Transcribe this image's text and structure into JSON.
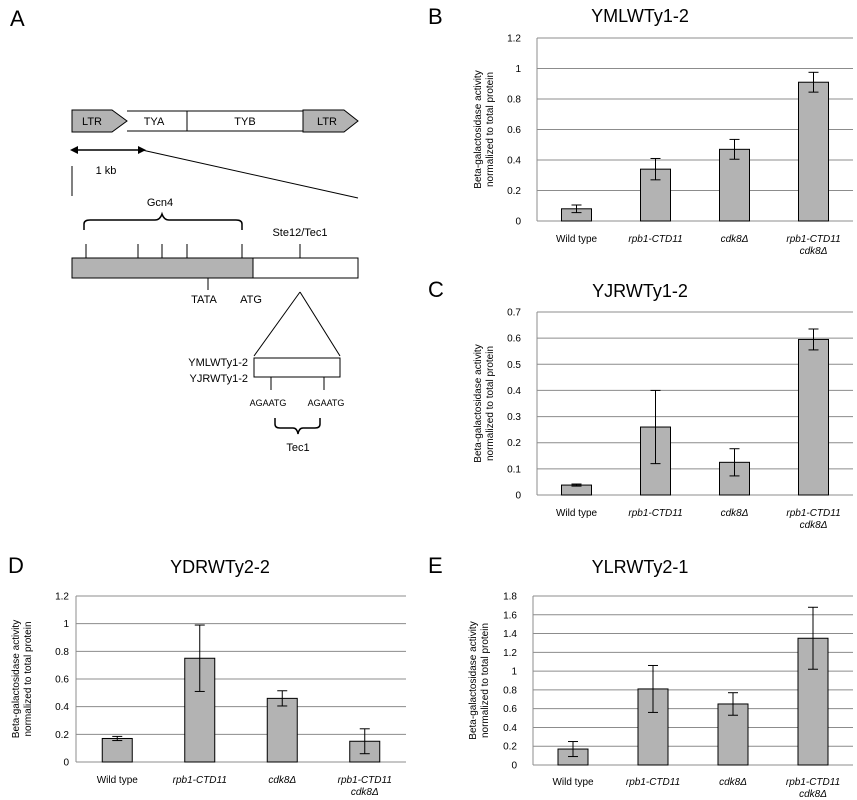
{
  "panel_a": {
    "letter": "A",
    "segments": {
      "ltr_left": "LTR",
      "tya": "TYA",
      "tyb": "TYB",
      "ltr_right": "LTR"
    },
    "scale": "1 kb",
    "gcn4": "Gcn4",
    "ste12": "Ste12/Tec1",
    "tata": "TATA",
    "atg": "ATG",
    "inset_label1": "YMLWTy1-2",
    "inset_label2": "YJRWTy1-2",
    "motif_left": "AGAATG",
    "motif_right": "AGAATG",
    "tec1": "Tec1"
  },
  "chart_data": [
    {
      "letter": "B",
      "type": "bar",
      "title": "YMLWTy1-2",
      "ylabel": "Beta-galactosidase activity normalized to total protein",
      "ylabel_lines": [
        "Beta-galactosidase activity",
        "normalized to total protein"
      ],
      "categories": [
        "Wild type",
        "rpb1-CTD11",
        "cdk8Δ",
        "rpb1-CTD11 cdk8Δ"
      ],
      "category_lines": [
        [
          "Wild type"
        ],
        [
          "rpb1-CTD11"
        ],
        [
          "cdk8Δ"
        ],
        [
          "rpb1-CTD11",
          "cdk8Δ"
        ]
      ],
      "italic": [
        false,
        true,
        true,
        true
      ],
      "values": [
        0.08,
        0.34,
        0.47,
        0.91
      ],
      "errors": [
        0.025,
        0.07,
        0.065,
        0.065
      ],
      "ylim": [
        0,
        1.2
      ],
      "yticks": [
        "0",
        "0.2",
        "0.4",
        "0.6",
        "0.8",
        "1",
        "1.2"
      ],
      "tick_values": [
        0,
        0.2,
        0.4,
        0.6,
        0.8,
        1,
        1.2
      ],
      "grid": true
    },
    {
      "letter": "C",
      "type": "bar",
      "title": "YJRWTy1-2",
      "ylabel": "Beta-galactosidase activity normalized to total protein",
      "ylabel_lines": [
        "Beta-galactosidase activity",
        "normalized to total protein"
      ],
      "categories": [
        "Wild type",
        "rpb1-CTD11",
        "cdk8Δ",
        "rpb1-CTD11 cdk8Δ"
      ],
      "category_lines": [
        [
          "Wild type"
        ],
        [
          "rpb1-CTD11"
        ],
        [
          "cdk8Δ"
        ],
        [
          "rpb1-CTD11",
          "cdk8Δ"
        ]
      ],
      "italic": [
        false,
        true,
        true,
        true
      ],
      "values": [
        0.038,
        0.26,
        0.125,
        0.595
      ],
      "errors": [
        0.004,
        0.14,
        0.052,
        0.04
      ],
      "ylim": [
        0,
        0.7
      ],
      "yticks": [
        "0",
        "0.1",
        "0.2",
        "0.3",
        "0.4",
        "0.5",
        "0.6",
        "0.7"
      ],
      "tick_values": [
        0,
        0.1,
        0.2,
        0.3,
        0.4,
        0.5,
        0.6,
        0.7
      ],
      "grid": true
    },
    {
      "letter": "D",
      "type": "bar",
      "title": "YDRWTy2-2",
      "ylabel": "Beta-galactosidase activity normalized to total protein",
      "ylabel_lines": [
        "Beta-galactosidase activity",
        "normalized to total protein"
      ],
      "categories": [
        "Wild type",
        "rpb1-CTD11",
        "cdk8Δ",
        "rpb1-CTD11 cdk8Δ"
      ],
      "category_lines": [
        [
          "Wild type"
        ],
        [
          "rpb1-CTD11"
        ],
        [
          "cdk8Δ"
        ],
        [
          "rpb1-CTD11",
          "cdk8Δ"
        ]
      ],
      "italic": [
        false,
        true,
        true,
        true
      ],
      "values": [
        0.17,
        0.75,
        0.46,
        0.15
      ],
      "errors": [
        0.015,
        0.24,
        0.055,
        0.09
      ],
      "ylim": [
        0,
        1.2
      ],
      "yticks": [
        "0",
        "0.2",
        "0.4",
        "0.6",
        "0.8",
        "1",
        "1.2"
      ],
      "tick_values": [
        0,
        0.2,
        0.4,
        0.6,
        0.8,
        1,
        1.2
      ],
      "grid": true
    },
    {
      "letter": "E",
      "type": "bar",
      "title": "YLRWTy2-1",
      "ylabel": "Beta-galactosidase activity normalized to total protein",
      "ylabel_lines": [
        "Beta-galactosidase activity",
        "normalized to total protein"
      ],
      "categories": [
        "Wild type",
        "rpb1-CTD11",
        "cdk8Δ",
        "rpb1-CTD11 cdk8Δ"
      ],
      "category_lines": [
        [
          "Wild type"
        ],
        [
          "rpb1-CTD11"
        ],
        [
          "cdk8Δ"
        ],
        [
          "rpb1-CTD11",
          "cdk8Δ"
        ]
      ],
      "italic": [
        false,
        true,
        true,
        true
      ],
      "values": [
        0.17,
        0.81,
        0.65,
        1.35
      ],
      "errors": [
        0.08,
        0.25,
        0.12,
        0.33
      ],
      "ylim": [
        0,
        1.8
      ],
      "yticks": [
        "0",
        "0.2",
        "0.4",
        "0.6",
        "0.8",
        "1",
        "1.2",
        "1.4",
        "1.6",
        "1.8"
      ],
      "tick_values": [
        0,
        0.2,
        0.4,
        0.6,
        0.8,
        1,
        1.2,
        1.4,
        1.6,
        1.8
      ],
      "grid": true
    }
  ],
  "colors": {
    "bar_fill": "#b3b3b3",
    "bar_stroke": "#000000",
    "grid": "#8c8c8c",
    "axis": "#8c8c8c"
  }
}
